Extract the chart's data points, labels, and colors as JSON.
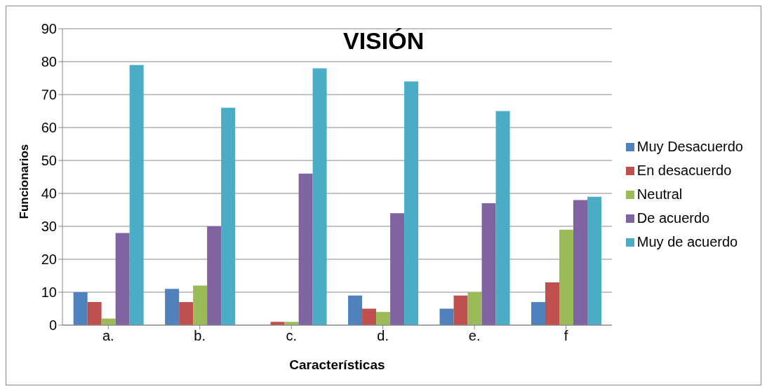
{
  "chart_data": {
    "type": "bar",
    "title": "VISIÓN",
    "xlabel": "Características",
    "ylabel": "Funcionarios",
    "categories": [
      "a.",
      "b.",
      "c.",
      "d.",
      "e.",
      "f"
    ],
    "series": [
      {
        "name": "Muy Desacuerdo",
        "color": "#4f81bd",
        "values": [
          10,
          11,
          0,
          9,
          5,
          7
        ]
      },
      {
        "name": "En desacuerdo",
        "color": "#c0504d",
        "values": [
          7,
          7,
          1,
          5,
          9,
          13
        ]
      },
      {
        "name": "Neutral",
        "color": "#9bbb59",
        "values": [
          2,
          12,
          1,
          4,
          10,
          29
        ]
      },
      {
        "name": "De acuerdo",
        "color": "#8064a2",
        "values": [
          28,
          30,
          46,
          34,
          37,
          38
        ]
      },
      {
        "name": "Muy de acuerdo",
        "color": "#4bacc6",
        "values": [
          79,
          66,
          78,
          74,
          65,
          39
        ]
      }
    ],
    "ylim": [
      0,
      90
    ],
    "yticks": [
      0,
      10,
      20,
      30,
      40,
      50,
      60,
      70,
      80,
      90
    ],
    "grid": "y",
    "legend": "right"
  }
}
